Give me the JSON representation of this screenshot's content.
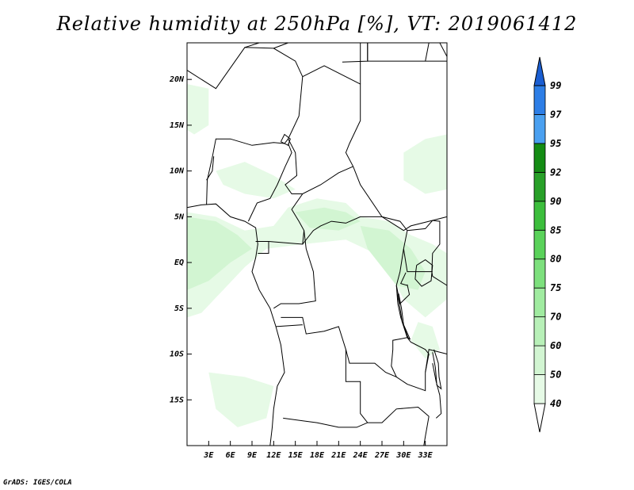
{
  "title": "Relative humidity at 250hPa [%], VT: 2019061412",
  "credit": "GrADS: IGES/COLA",
  "map": {
    "lon_range": [
      0,
      36
    ],
    "lat_range": [
      -20,
      24
    ],
    "lat_ticks": [
      {
        "value": 20,
        "label": "20N"
      },
      {
        "value": 15,
        "label": "15N"
      },
      {
        "value": 10,
        "label": "10N"
      },
      {
        "value": 5,
        "label": "5N"
      },
      {
        "value": 0,
        "label": "EQ"
      },
      {
        "value": -5,
        "label": "5S"
      },
      {
        "value": -10,
        "label": "10S"
      },
      {
        "value": -15,
        "label": "15S"
      }
    ],
    "lon_ticks": [
      {
        "value": 3,
        "label": "3E"
      },
      {
        "value": 6,
        "label": "6E"
      },
      {
        "value": 9,
        "label": "9E"
      },
      {
        "value": 12,
        "label": "12E"
      },
      {
        "value": 15,
        "label": "15E"
      },
      {
        "value": 18,
        "label": "18E"
      },
      {
        "value": 21,
        "label": "21E"
      },
      {
        "value": 24,
        "label": "24E"
      },
      {
        "value": 27,
        "label": "27E"
      },
      {
        "value": 30,
        "label": "30E"
      },
      {
        "value": 33,
        "label": "33E"
      }
    ]
  },
  "colorbar": {
    "labels": [
      "40",
      "50",
      "60",
      "70",
      "75",
      "80",
      "85",
      "90",
      "92",
      "95",
      "97",
      "99"
    ],
    "colors": [
      "#ffffff",
      "#e6fae6",
      "#d2f5d2",
      "#b8f0b8",
      "#a0eba0",
      "#7de07d",
      "#5ad25a",
      "#3cbe3c",
      "#28a028",
      "#148c14",
      "#4aa0f0",
      "#2d7ee6",
      "#1a5ed2"
    ]
  }
}
